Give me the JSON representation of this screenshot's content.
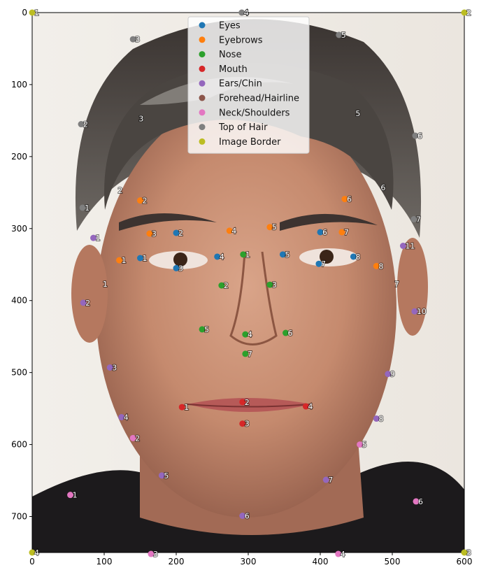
{
  "chart_data": {
    "type": "scatter",
    "background": "photograph of a man's face (portrait)",
    "xlim": [
      0,
      600
    ],
    "ylim": [
      750,
      0
    ],
    "x_ticks": [
      0,
      100,
      200,
      300,
      400,
      500,
      600
    ],
    "y_ticks": [
      0,
      100,
      200,
      300,
      400,
      500,
      600,
      700
    ],
    "legend_position": "upper-center",
    "series": [
      {
        "name": "Eyes",
        "color": "#1f77b4",
        "points": [
          {
            "x": 150,
            "y": 341,
            "label": "1"
          },
          {
            "x": 200,
            "y": 306,
            "label": "2"
          },
          {
            "x": 200,
            "y": 355,
            "label": "3"
          },
          {
            "x": 257,
            "y": 339,
            "label": "4"
          },
          {
            "x": 348,
            "y": 336,
            "label": "5"
          },
          {
            "x": 400,
            "y": 305,
            "label": "6"
          },
          {
            "x": 398,
            "y": 349,
            "label": "7"
          },
          {
            "x": 446,
            "y": 339,
            "label": "8"
          }
        ]
      },
      {
        "name": "Eyebrows",
        "color": "#ff7f0e",
        "points": [
          {
            "x": 121,
            "y": 344,
            "label": "1"
          },
          {
            "x": 150,
            "y": 261,
            "label": "2"
          },
          {
            "x": 163,
            "y": 307,
            "label": "3"
          },
          {
            "x": 274,
            "y": 303,
            "label": "4"
          },
          {
            "x": 330,
            "y": 298,
            "label": "5"
          },
          {
            "x": 434,
            "y": 259,
            "label": "6"
          },
          {
            "x": 430,
            "y": 305,
            "label": "7"
          },
          {
            "x": 478,
            "y": 352,
            "label": "8"
          }
        ]
      },
      {
        "name": "Nose",
        "color": "#2ca02c",
        "points": [
          {
            "x": 293,
            "y": 336,
            "label": "1"
          },
          {
            "x": 263,
            "y": 379,
            "label": "2"
          },
          {
            "x": 330,
            "y": 378,
            "label": "3"
          },
          {
            "x": 296,
            "y": 447,
            "label": "4"
          },
          {
            "x": 236,
            "y": 440,
            "label": "5"
          },
          {
            "x": 352,
            "y": 445,
            "label": "6"
          },
          {
            "x": 296,
            "y": 474,
            "label": "7"
          }
        ]
      },
      {
        "name": "Mouth",
        "color": "#d62728",
        "points": [
          {
            "x": 208,
            "y": 548,
            "label": "1"
          },
          {
            "x": 292,
            "y": 541,
            "label": "2"
          },
          {
            "x": 292,
            "y": 571,
            "label": "3"
          },
          {
            "x": 380,
            "y": 547,
            "label": "4"
          }
        ]
      },
      {
        "name": "Ears/Chin",
        "color": "#9467bd",
        "points": [
          {
            "x": 85,
            "y": 313,
            "label": "1"
          },
          {
            "x": 71,
            "y": 403,
            "label": "2"
          },
          {
            "x": 108,
            "y": 493,
            "label": "3"
          },
          {
            "x": 124,
            "y": 562,
            "label": "4"
          },
          {
            "x": 180,
            "y": 643,
            "label": "5"
          },
          {
            "x": 292,
            "y": 699,
            "label": "6"
          },
          {
            "x": 408,
            "y": 649,
            "label": "7"
          },
          {
            "x": 478,
            "y": 564,
            "label": "8"
          },
          {
            "x": 494,
            "y": 502,
            "label": "9"
          },
          {
            "x": 531,
            "y": 415,
            "label": "10"
          },
          {
            "x": 515,
            "y": 324,
            "label": "11"
          }
        ]
      },
      {
        "name": "Forehead/Hairline",
        "color": "#8c564b",
        "points": [
          {
            "x": 95,
            "y": 377,
            "label": "1",
            "no_marker": true
          },
          {
            "x": 116,
            "y": 247,
            "label": "2",
            "no_marker": true
          },
          {
            "x": 145,
            "y": 147,
            "label": "3",
            "no_marker": true
          },
          {
            "x": 291,
            "y": 0,
            "label": "4",
            "no_marker": true
          },
          {
            "x": 446,
            "y": 140,
            "label": "5",
            "no_marker": true
          },
          {
            "x": 481,
            "y": 243,
            "label": "6",
            "no_marker": true
          },
          {
            "x": 500,
            "y": 377,
            "label": "7",
            "no_marker": true
          }
        ]
      },
      {
        "name": "Neck/Shoulders",
        "color": "#e377c2",
        "points": [
          {
            "x": 53,
            "y": 670,
            "label": "1"
          },
          {
            "x": 140,
            "y": 591,
            "label": "2"
          },
          {
            "x": 165,
            "y": 752,
            "label": "3"
          },
          {
            "x": 425,
            "y": 752,
            "label": "4"
          },
          {
            "x": 455,
            "y": 600,
            "label": "5"
          },
          {
            "x": 533,
            "y": 679,
            "label": "6"
          }
        ]
      },
      {
        "name": "Top of Hair",
        "color": "#7f7f7f",
        "points": [
          {
            "x": 70,
            "y": 271,
            "label": "1"
          },
          {
            "x": 68,
            "y": 155,
            "label": "2"
          },
          {
            "x": 140,
            "y": 37,
            "label": "3"
          },
          {
            "x": 291,
            "y": 0,
            "label": "4"
          },
          {
            "x": 426,
            "y": 31,
            "label": "5"
          },
          {
            "x": 532,
            "y": 171,
            "label": "6"
          },
          {
            "x": 530,
            "y": 287,
            "label": "7"
          }
        ]
      },
      {
        "name": "Image Border",
        "color": "#bcbd22",
        "points": [
          {
            "x": 0,
            "y": 0,
            "label": "1"
          },
          {
            "x": 600,
            "y": 0,
            "label": "2"
          },
          {
            "x": 600,
            "y": 750,
            "label": "3"
          },
          {
            "x": 0,
            "y": 750,
            "label": "4"
          }
        ]
      }
    ]
  }
}
